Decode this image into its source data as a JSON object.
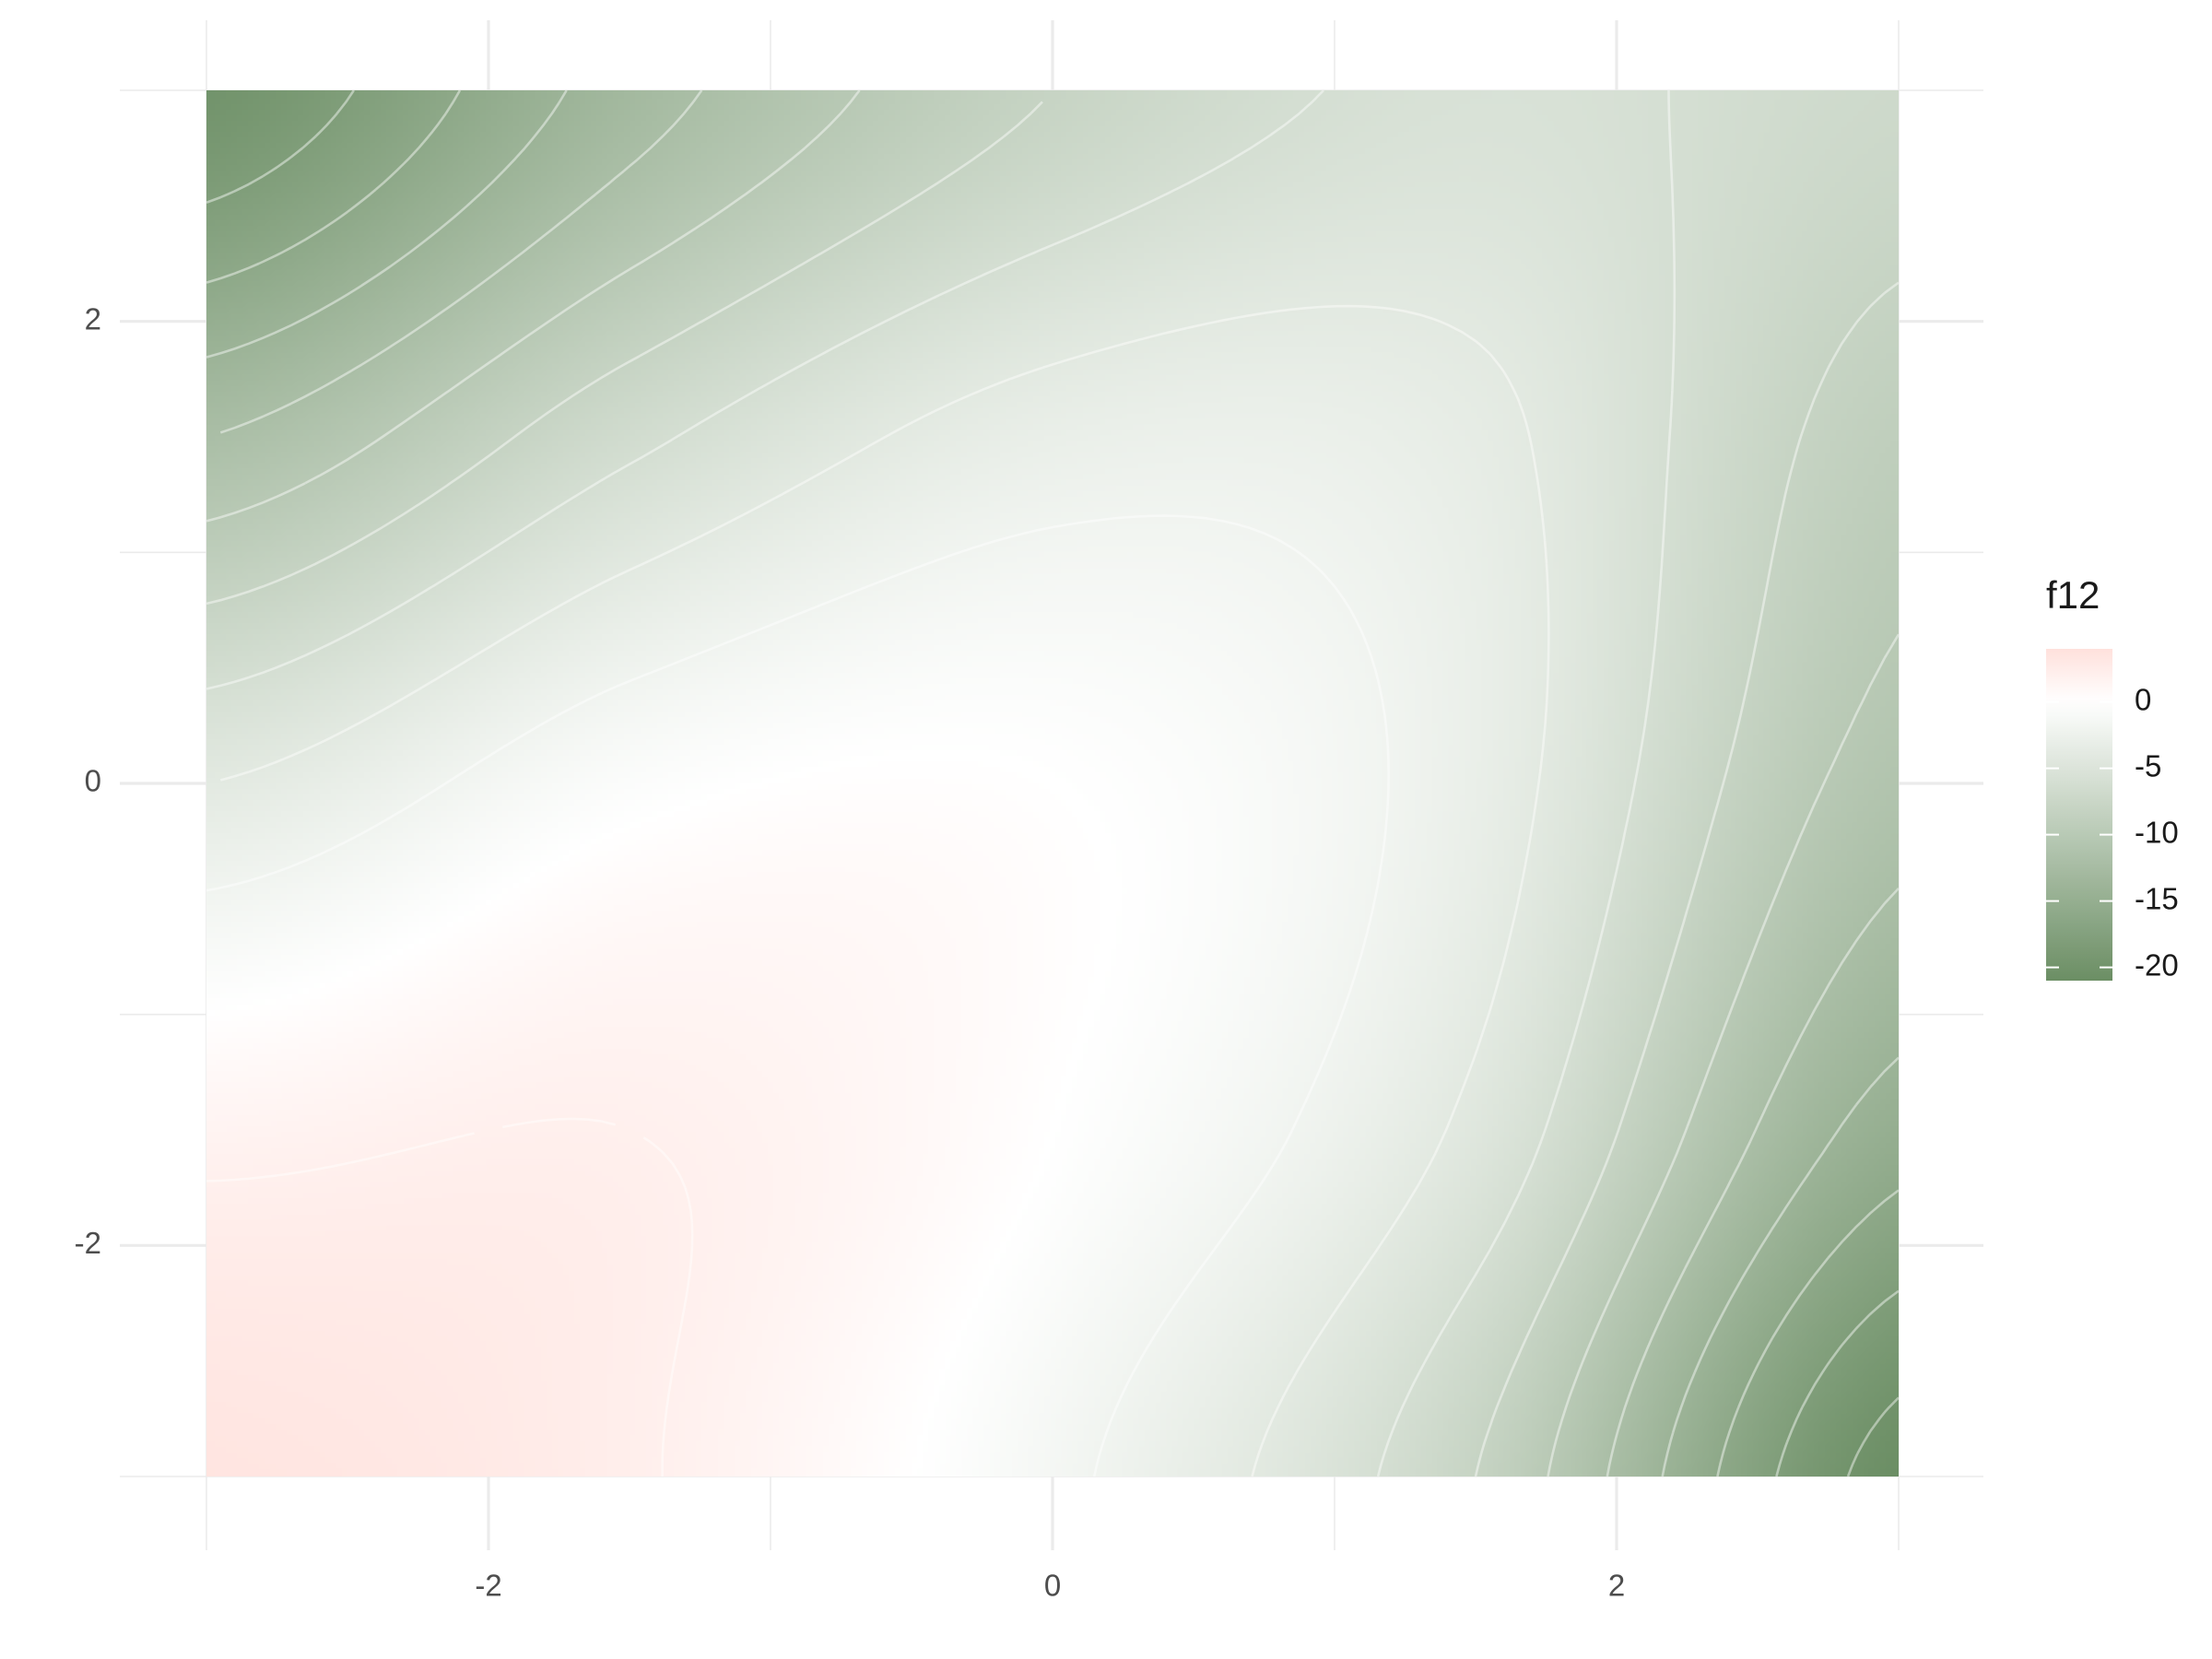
{
  "chart_data": {
    "type": "heatmap",
    "title": "",
    "xlabel": "",
    "ylabel": "",
    "xlim": [
      -3,
      3
    ],
    "ylim": [
      -3,
      3
    ],
    "x_ticks": [
      -2,
      0,
      2
    ],
    "y_ticks": [
      -2,
      0,
      2
    ],
    "x_tick_labels": [
      "-2",
      "0",
      "2"
    ],
    "y_tick_labels": [
      "-2",
      "0",
      "2"
    ],
    "grid": true,
    "fill_variable": "f12",
    "value_range": [
      -21,
      4
    ],
    "contours": true,
    "contour_levels": [
      2,
      0,
      -2,
      -4,
      -6,
      -8,
      -10,
      -12,
      -14,
      -16,
      -18,
      -20
    ],
    "colorscale": {
      "low": "#6b8e64",
      "mid": "#ffffff",
      "high": "#ffe1dc",
      "midpoint": 0
    },
    "legend": {
      "title": "f12",
      "position": "right",
      "breaks": [
        0,
        -5,
        -10,
        -15,
        -20
      ],
      "labels": [
        "0",
        "-5",
        "-10",
        "-15",
        "-20"
      ]
    },
    "surface": {
      "description_note": "",
      "x_samples": [
        -3,
        -1.5,
        0,
        1.5,
        3
      ],
      "y_samples": [
        3,
        1.5,
        0,
        -1.5,
        -3
      ],
      "values": [
        [
          -20,
          -13,
          -8,
          -5.5,
          -7
        ],
        [
          -12,
          -6.5,
          -3,
          -3.5,
          -9
        ],
        [
          -4,
          -0.5,
          0,
          -3,
          -11
        ],
        [
          1.5,
          2,
          0,
          -4.5,
          -15
        ],
        [
          3.5,
          2.2,
          -1.5,
          -8,
          -21
        ]
      ]
    }
  }
}
